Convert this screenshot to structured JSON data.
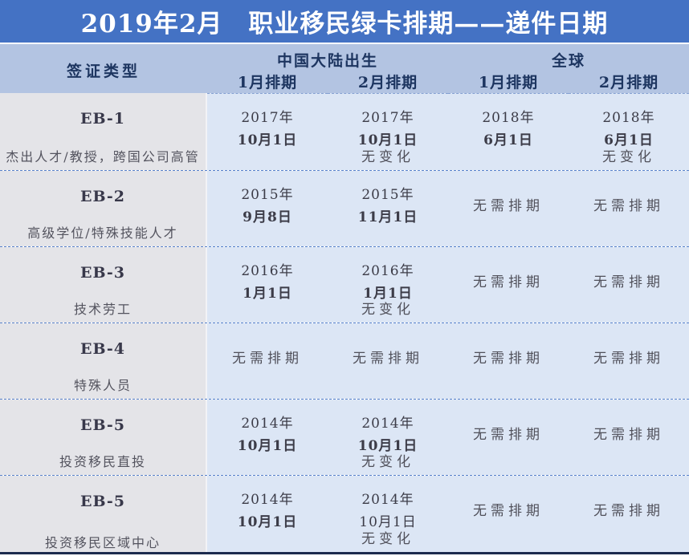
{
  "title": "2019年2月　职业移民绿卡排期——递件日期",
  "header": {
    "visa_type": "签证类型",
    "groups": [
      {
        "label": "中国大陆出生",
        "sub1": "1月排期",
        "sub2": "2月排期"
      },
      {
        "label": "全球",
        "sub1": "1月排期",
        "sub2": "2月排期"
      }
    ]
  },
  "rows": [
    {
      "label": "EB-1",
      "subtitle": "杰出人才/教授，跨国公司高管",
      "cells": [
        {
          "year": "2017年",
          "date": "10月1日"
        },
        {
          "year": "2017年",
          "date": "10月1日",
          "note": "无变化"
        },
        {
          "year": "2018年",
          "date": "6月1日"
        },
        {
          "year": "2018年",
          "date": "6月1日",
          "note": "无变化"
        }
      ]
    },
    {
      "label": "EB-2",
      "subtitle": "高级学位/特殊技能人才",
      "cells": [
        {
          "year": "2015年",
          "date": "9月8日"
        },
        {
          "year": "2015年",
          "date": "11月1日"
        },
        {
          "single": "无需排期"
        },
        {
          "single": "无需排期"
        }
      ]
    },
    {
      "label": "EB-3",
      "subtitle": "技术劳工",
      "cells": [
        {
          "year": "2016年",
          "date": "1月1日"
        },
        {
          "year": "2016年",
          "date": "1月1日",
          "note": "无变化"
        },
        {
          "single": "无需排期"
        },
        {
          "single": "无需排期"
        }
      ]
    },
    {
      "label": "EB-4",
      "subtitle": "特殊人员",
      "cells": [
        {
          "single": "无需排期"
        },
        {
          "single": "无需排期"
        },
        {
          "single": "无需排期"
        },
        {
          "single": "无需排期"
        }
      ]
    },
    {
      "label": "EB-5",
      "subtitle": "投资移民直投",
      "cells": [
        {
          "year": "2014年",
          "date": "10月1日"
        },
        {
          "year": "2014年",
          "date": "10月1日",
          "note": "无变化"
        },
        {
          "single": "无需排期"
        },
        {
          "single": "无需排期"
        }
      ]
    },
    {
      "label": "EB-5",
      "subtitle": "投资移民区域中心",
      "cells": [
        {
          "year": "2014年",
          "date": "10月1日"
        },
        {
          "year": "2014年",
          "date": "10月1日",
          "note": "无变化"
        },
        {
          "single": "无需排期"
        },
        {
          "single": "无需排期"
        }
      ]
    }
  ],
  "colors": {
    "title_bar": "#4472c4",
    "header_band": "#b3c4e2",
    "label_column": "#e4e4e8",
    "data_cell": "#dce6f5",
    "header_text": "#1d3560",
    "dashed_line": "#5b84cc",
    "bottom_bar": "#1c2b4e"
  },
  "chart_data": {
    "type": "table",
    "title": "2019年2月 职业移民绿卡排期——递件日期",
    "columns": [
      "签证类型",
      "中国大陆出生 1月排期",
      "中国大陆出生 2月排期",
      "全球 1月排期",
      "全球 2月排期"
    ],
    "rows": [
      [
        "EB-1 杰出人才/教授，跨国公司高管",
        "2017年10月1日",
        "2017年10月1日（无变化）",
        "2018年6月1日",
        "2018年6月1日（无变化）"
      ],
      [
        "EB-2 高级学位/特殊技能人才",
        "2015年9月8日",
        "2015年11月1日",
        "无需排期",
        "无需排期"
      ],
      [
        "EB-3 技术劳工",
        "2016年1月1日",
        "2016年1月1日（无变化）",
        "无需排期",
        "无需排期"
      ],
      [
        "EB-4 特殊人员",
        "无需排期",
        "无需排期",
        "无需排期",
        "无需排期"
      ],
      [
        "EB-5 投资移民直投",
        "2014年10月1日",
        "2014年10月1日（无变化）",
        "无需排期",
        "无需排期"
      ],
      [
        "EB-5 投资移民区域中心",
        "2014年10月1日",
        "2014年10月1日（无变化）",
        "无需排期",
        "无需排期"
      ]
    ]
  }
}
